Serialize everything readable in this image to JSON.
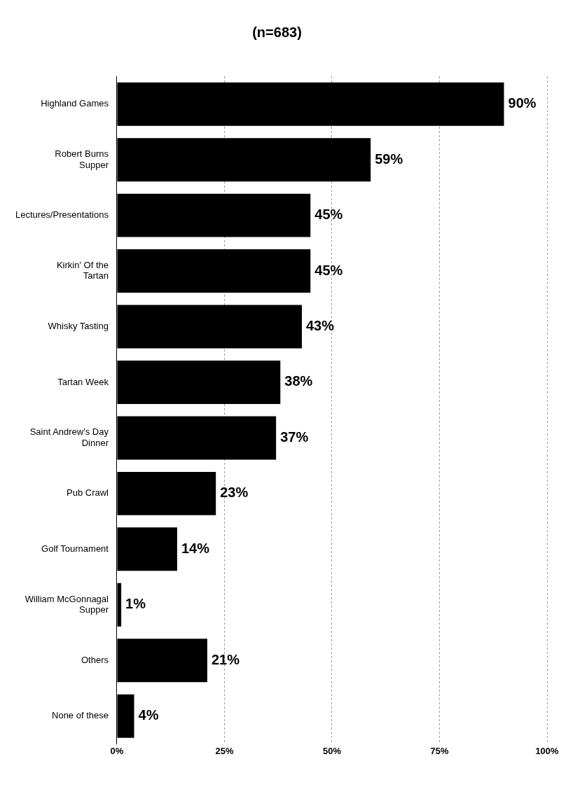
{
  "chart_data": {
    "type": "bar",
    "orientation": "horizontal",
    "title": "(n=683)",
    "categories": [
      "Highland Games",
      "Robert Burns Supper",
      "Lectures/Presentations",
      "Kirkin' Of the Tartan",
      "Whisky Tasting",
      "Tartan Week",
      "Saint Andrew's Day Dinner",
      "Pub Crawl",
      "Golf Tournament",
      "William McGonnagal Supper",
      "Others",
      "None of these"
    ],
    "values": [
      90,
      59,
      45,
      45,
      43,
      38,
      37,
      23,
      14,
      1,
      21,
      4
    ],
    "value_labels": [
      "90%",
      "59%",
      "45%",
      "45%",
      "43%",
      "38%",
      "37%",
      "23%",
      "14%",
      "1%",
      "21%",
      "4%"
    ],
    "color": "#000000",
    "xlim": [
      0,
      100
    ],
    "xticks": [
      {
        "value": 0,
        "label": "0%"
      },
      {
        "value": 25,
        "label": "25%"
      },
      {
        "value": 50,
        "label": "50%"
      },
      {
        "value": 75,
        "label": "75%"
      },
      {
        "value": 100,
        "label": "100%"
      }
    ],
    "grid": "x",
    "legend": false
  }
}
